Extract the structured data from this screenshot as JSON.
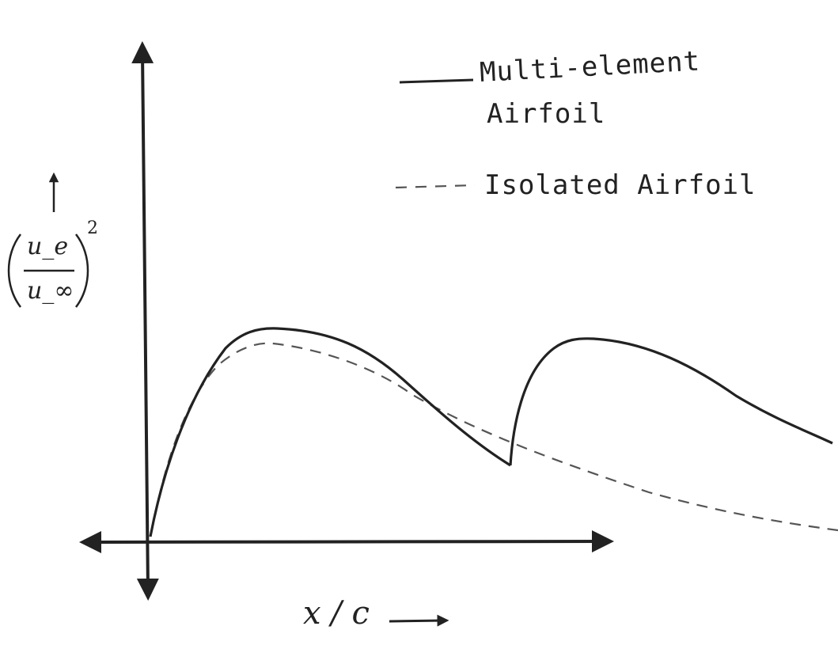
{
  "diagram": {
    "x_axis_label": "x / c",
    "y_axis_label": {
      "numerator": "u_e",
      "denominator": "u_∞",
      "exponent": "2"
    },
    "legend": [
      {
        "label_line1": "Multi-element",
        "label_line2": "Airfoil",
        "style": "solid"
      },
      {
        "label_line1": "Isolated Airfoil",
        "label_line2": "",
        "style": "dashed"
      }
    ],
    "colors": {
      "ink": "#222222",
      "dashed_ink": "#555555"
    }
  }
}
